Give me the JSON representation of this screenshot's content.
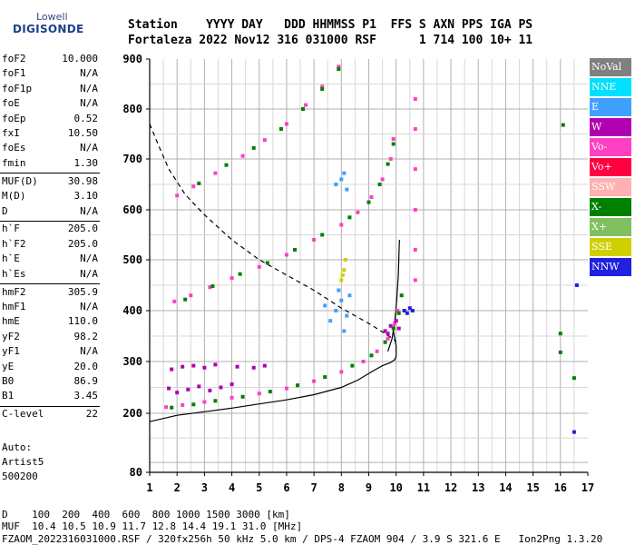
{
  "logo": {
    "line1": "Lowell",
    "line2": "DIGISONDE"
  },
  "header": {
    "line1": "Station    YYYY DAY   DDD HHMMSS P1  FFS S AXN PPS IGA PS",
    "line2": "Fortaleza 2022 Nov12 316 031000 RSF      1 714 100 10+ 11"
  },
  "params": [
    {
      "name": "foF2",
      "value": "10.000"
    },
    {
      "name": "foF1",
      "value": "N/A"
    },
    {
      "name": "foF1p",
      "value": "N/A"
    },
    {
      "name": "foE",
      "value": "N/A"
    },
    {
      "name": "foEp",
      "value": "0.52"
    },
    {
      "name": "fxI",
      "value": "10.50"
    },
    {
      "name": "foEs",
      "value": "N/A"
    },
    {
      "name": "fmin",
      "value": "1.30"
    },
    {
      "name": "MUF(D)",
      "value": "30.98"
    },
    {
      "name": "M(D)",
      "value": "3.10"
    },
    {
      "name": "D",
      "value": "N/A"
    },
    {
      "name": "h`F",
      "value": "205.0"
    },
    {
      "name": "h`F2",
      "value": "205.0"
    },
    {
      "name": "h`E",
      "value": "N/A"
    },
    {
      "name": "h`Es",
      "value": "N/A"
    },
    {
      "name": "hmF2",
      "value": "305.9"
    },
    {
      "name": "hmF1",
      "value": "N/A"
    },
    {
      "name": "hmE",
      "value": "110.0"
    },
    {
      "name": "yF2",
      "value": "98.2"
    },
    {
      "name": "yF1",
      "value": "N/A"
    },
    {
      "name": "yE",
      "value": "20.0"
    },
    {
      "name": "B0",
      "value": "86.9"
    },
    {
      "name": "B1",
      "value": "3.45"
    },
    {
      "name": "C-level",
      "value": "22"
    }
  ],
  "auto": {
    "line1": "Auto:",
    "line2": "Artist5",
    "line3": "500200"
  },
  "legend": [
    {
      "label": "NoVal",
      "color": "#808080"
    },
    {
      "label": "NNE",
      "color": "#00e0ff"
    },
    {
      "label": "E",
      "color": "#40a0ff"
    },
    {
      "label": "W",
      "color": "#b000b0"
    },
    {
      "label": "Vo-",
      "color": "#ff40c0"
    },
    {
      "label": "Vo+",
      "color": "#ff0040"
    },
    {
      "label": "SSW",
      "color": "#ffb0b0"
    },
    {
      "label": "X-",
      "color": "#008000"
    },
    {
      "label": "X+",
      "color": "#80c060"
    },
    {
      "label": "SSE",
      "color": "#d0d000"
    },
    {
      "label": "NNW",
      "color": "#2020e0"
    }
  ],
  "footer": {
    "line1": "D    100  200  400  600  800 1000 1500 3000 [km]",
    "line2": "MUF  10.4 10.5 10.9 11.7 12.8 14.4 19.1 31.0 [MHz]",
    "line3": "FZAOM_2022316031000.RSF / 320fx256h 50 kHz 5.0 km / DPS-4 FZAOM 904 / 3.9 S 321.6 E   Ion2Png 1.3.20"
  },
  "chart_data": {
    "type": "scatter",
    "xlim": [
      1,
      17
    ],
    "ylim": [
      80,
      900
    ],
    "x_ticks": [
      1,
      2,
      3,
      4,
      5,
      6,
      7,
      8,
      9,
      10,
      11,
      12,
      13,
      14,
      15,
      16,
      17
    ],
    "y_ticks": [
      80,
      200,
      300,
      400,
      500,
      600,
      700,
      800,
      900
    ],
    "grid": true,
    "series": [
      {
        "color": "#ff40c0",
        "points": [
          [
            1.6,
            212
          ],
          [
            2.2,
            216
          ],
          [
            3.0,
            222
          ],
          [
            4.0,
            230
          ],
          [
            5.0,
            238
          ],
          [
            6.0,
            248
          ],
          [
            7.0,
            262
          ],
          [
            8.0,
            280
          ],
          [
            8.8,
            300
          ],
          [
            9.3,
            320
          ],
          [
            9.7,
            345
          ],
          [
            9.95,
            375
          ],
          [
            10.05,
            400
          ]
        ]
      },
      {
        "color": "#008000",
        "points": [
          [
            1.8,
            211
          ],
          [
            2.6,
            217
          ],
          [
            3.4,
            224
          ],
          [
            4.4,
            232
          ],
          [
            5.4,
            242
          ],
          [
            6.4,
            254
          ],
          [
            7.4,
            270
          ],
          [
            8.4,
            292
          ],
          [
            9.1,
            312
          ],
          [
            9.6,
            338
          ],
          [
            9.9,
            365
          ],
          [
            10.1,
            395
          ],
          [
            10.2,
            430
          ]
        ]
      },
      {
        "color": "#ff40c0",
        "points": [
          [
            1.9,
            418
          ],
          [
            2.5,
            430
          ],
          [
            3.2,
            446
          ],
          [
            4.0,
            464
          ],
          [
            5.0,
            486
          ],
          [
            6.0,
            510
          ],
          [
            7.0,
            540
          ],
          [
            8.0,
            570
          ],
          [
            8.6,
            595
          ],
          [
            9.1,
            625
          ],
          [
            9.5,
            660
          ],
          [
            9.8,
            700
          ],
          [
            9.9,
            740
          ]
        ]
      },
      {
        "color": "#008000",
        "points": [
          [
            2.3,
            422
          ],
          [
            3.3,
            448
          ],
          [
            4.3,
            472
          ],
          [
            5.3,
            494
          ],
          [
            6.3,
            520
          ],
          [
            7.3,
            550
          ],
          [
            8.3,
            585
          ],
          [
            9.0,
            615
          ],
          [
            9.4,
            650
          ],
          [
            9.7,
            690
          ],
          [
            9.9,
            730
          ]
        ]
      },
      {
        "color": "#ff40c0",
        "points": [
          [
            2.0,
            628
          ],
          [
            2.6,
            646
          ],
          [
            3.4,
            672
          ],
          [
            4.4,
            706
          ],
          [
            5.2,
            738
          ],
          [
            6.0,
            770
          ],
          [
            6.7,
            808
          ],
          [
            7.3,
            845
          ],
          [
            7.9,
            885
          ]
        ]
      },
      {
        "color": "#008000",
        "points": [
          [
            2.8,
            652
          ],
          [
            3.8,
            688
          ],
          [
            4.8,
            722
          ],
          [
            5.8,
            760
          ],
          [
            6.6,
            800
          ],
          [
            7.3,
            840
          ],
          [
            7.9,
            880
          ]
        ]
      },
      {
        "color": "#b000b0",
        "points": [
          [
            1.8,
            285
          ],
          [
            2.2,
            290
          ],
          [
            2.6,
            292
          ],
          [
            3.0,
            288
          ],
          [
            3.4,
            294
          ],
          [
            4.2,
            290
          ],
          [
            4.8,
            288
          ],
          [
            5.2,
            292
          ]
        ]
      },
      {
        "color": "#b000b0",
        "points": [
          [
            1.7,
            248
          ],
          [
            2.0,
            240
          ],
          [
            2.4,
            246
          ],
          [
            2.8,
            252
          ],
          [
            3.2,
            244
          ],
          [
            3.6,
            250
          ],
          [
            4.0,
            256
          ]
        ]
      },
      {
        "color": "#40a0ff",
        "points": [
          [
            7.6,
            380
          ],
          [
            7.8,
            400
          ],
          [
            8.0,
            420
          ],
          [
            8.2,
            390
          ],
          [
            7.9,
            440
          ],
          [
            8.1,
            360
          ],
          [
            7.4,
            410
          ],
          [
            8.3,
            430
          ]
        ]
      },
      {
        "color": "#d0d000",
        "points": [
          [
            8.0,
            460
          ],
          [
            8.1,
            480
          ],
          [
            8.15,
            500
          ],
          [
            8.05,
            470
          ]
        ]
      },
      {
        "color": "#40a0ff",
        "points": [
          [
            7.8,
            650
          ],
          [
            8.0,
            660
          ],
          [
            8.2,
            640
          ],
          [
            8.1,
            672
          ]
        ]
      },
      {
        "color": "#ff40c0",
        "points": [
          [
            10.7,
            460
          ],
          [
            10.7,
            520
          ],
          [
            10.7,
            600
          ],
          [
            10.7,
            680
          ],
          [
            10.7,
            760
          ],
          [
            10.7,
            820
          ]
        ]
      },
      {
        "color": "#2020e0",
        "points": [
          [
            10.3,
            400
          ],
          [
            10.4,
            395
          ],
          [
            10.5,
            405
          ],
          [
            10.6,
            400
          ]
        ]
      },
      {
        "color": "#b000b0",
        "points": [
          [
            9.6,
            360
          ],
          [
            9.8,
            370
          ],
          [
            10.0,
            380
          ],
          [
            9.7,
            355
          ],
          [
            10.1,
            365
          ]
        ]
      },
      {
        "color": "#008000",
        "points": [
          [
            16.0,
            355
          ],
          [
            16.0,
            318
          ],
          [
            16.5,
            268
          ],
          [
            16.1,
            768
          ]
        ]
      },
      {
        "color": "#2020e0",
        "points": [
          [
            16.6,
            450
          ],
          [
            16.5,
            162
          ]
        ]
      }
    ],
    "curves": [
      {
        "style": "solid",
        "color": "#000000",
        "points": [
          [
            1.0,
            183
          ],
          [
            2.0,
            196
          ],
          [
            3.0,
            203
          ],
          [
            4.0,
            210
          ],
          [
            5.0,
            218
          ],
          [
            6.0,
            226
          ],
          [
            7.0,
            236
          ],
          [
            8.0,
            250
          ],
          [
            8.6,
            264
          ],
          [
            9.1,
            280
          ],
          [
            9.5,
            292
          ],
          [
            9.8,
            298
          ],
          [
            9.95,
            304
          ],
          [
            10.0,
            310
          ],
          [
            10.0,
            330
          ],
          [
            9.9,
            360
          ]
        ]
      },
      {
        "style": "solid",
        "color": "#000000",
        "points": [
          [
            9.7,
            320
          ],
          [
            9.85,
            345
          ],
          [
            9.95,
            380
          ],
          [
            10.02,
            420
          ],
          [
            10.08,
            470
          ],
          [
            10.12,
            540
          ]
        ]
      },
      {
        "style": "dashed",
        "color": "#000000",
        "points": [
          [
            1.0,
            770
          ],
          [
            1.3,
            730
          ],
          [
            1.7,
            680
          ],
          [
            2.3,
            630
          ],
          [
            3.0,
            590
          ],
          [
            4.0,
            540
          ],
          [
            5.0,
            500
          ],
          [
            6.0,
            470
          ],
          [
            7.0,
            440
          ],
          [
            8.0,
            405
          ],
          [
            9.0,
            375
          ],
          [
            9.6,
            355
          ],
          [
            10.0,
            340
          ]
        ]
      }
    ]
  }
}
